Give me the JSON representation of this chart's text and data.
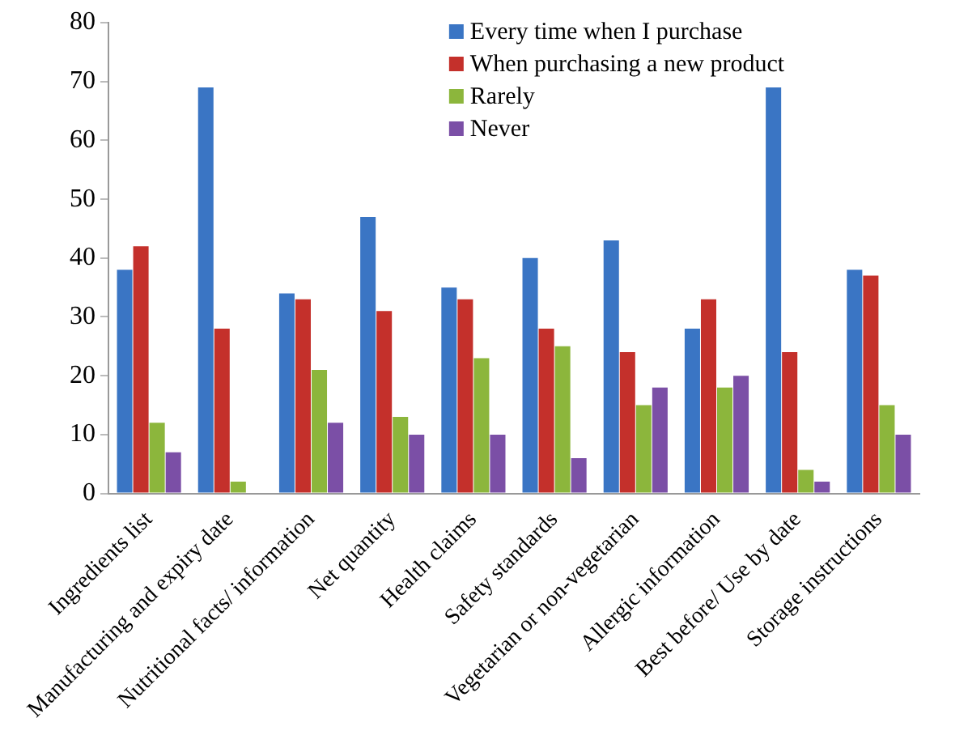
{
  "chart_data": {
    "type": "bar",
    "categories": [
      "Ingredients list",
      "Manufacturing and expiry date",
      "Nutritional facts/ information",
      "Net quantity",
      "Health claims",
      "Safety standards",
      "Vegetarian or non-vegetarian",
      "Allergic information",
      "Best before/ Use by date",
      "Storage instructions"
    ],
    "series": [
      {
        "name": "Every time when I purchase",
        "color": "#3a75c4",
        "values": [
          38,
          69,
          34,
          47,
          35,
          40,
          43,
          28,
          69,
          38
        ]
      },
      {
        "name": "When purchasing a new product",
        "color": "#c4302b",
        "values": [
          42,
          28,
          33,
          31,
          33,
          28,
          24,
          33,
          24,
          37
        ]
      },
      {
        "name": "Rarely",
        "color": "#8cb63c",
        "values": [
          12,
          2,
          21,
          13,
          23,
          25,
          15,
          18,
          4,
          15
        ]
      },
      {
        "name": "Never",
        "color": "#7b4fa6",
        "values": [
          7,
          0,
          12,
          10,
          10,
          6,
          18,
          20,
          2,
          10
        ]
      }
    ],
    "ylim": [
      0,
      80
    ],
    "yticks": [
      0,
      10,
      20,
      30,
      40,
      50,
      60,
      70,
      80
    ],
    "grid": false,
    "legend": "top"
  }
}
